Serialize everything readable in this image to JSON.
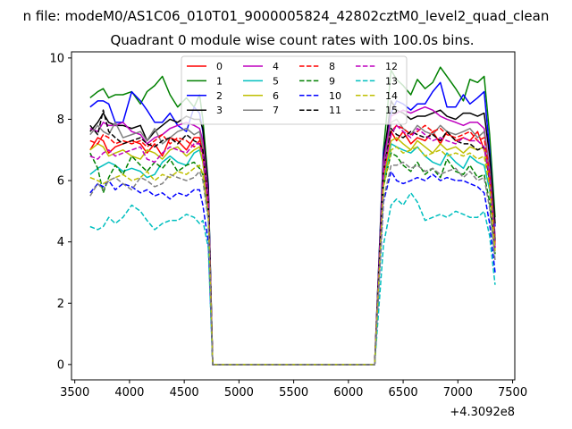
{
  "chart_data": {
    "type": "line",
    "supertitle": "n file: modeM0/AS1C06_010T01_9000005824_42802cztM0_level2_quad_clean",
    "title": "Quadrant 0 module wise count rates with 100.0s bins.",
    "xlabel": "",
    "ylabel": "",
    "x_offset_label": "+4.3092e8",
    "xlim": [
      3470,
      7520
    ],
    "ylim": [
      -0.5,
      10.2
    ],
    "x_ticks": [
      3500,
      4000,
      4500,
      5000,
      5500,
      6000,
      6500,
      7000,
      7500
    ],
    "x_tick_labels": [
      "3500",
      "4000",
      "4500",
      "5000",
      "5500",
      "6000",
      "6500",
      "7000",
      "7500"
    ],
    "y_ticks": [
      0,
      2,
      4,
      6,
      8,
      10
    ],
    "y_tick_labels": [
      "0",
      "2",
      "4",
      "6",
      "8",
      "10"
    ],
    "grid": false,
    "legend_placement": "upper-center",
    "legend_columns": 4,
    "x": [
      3640,
      3710,
      3760,
      3810,
      3870,
      3940,
      4020,
      4100,
      4160,
      4230,
      4300,
      4370,
      4440,
      4520,
      4590,
      4640,
      4670,
      4720,
      4760,
      4840,
      6240,
      6320,
      6390,
      6440,
      6500,
      6570,
      6630,
      6700,
      6770,
      6840,
      6900,
      6980,
      7050,
      7110,
      7180,
      7240,
      7290,
      7340
    ],
    "series": [
      {
        "name": "0",
        "color": "#ff0000",
        "dash": "solid",
        "values": [
          7.0,
          7.4,
          7.3,
          6.9,
          7.1,
          7.2,
          7.3,
          7.2,
          6.9,
          7.2,
          6.8,
          7.4,
          7.3,
          7.0,
          7.4,
          7.4,
          6.9,
          5.2,
          0.0,
          0.0,
          0.0,
          6.5,
          7.6,
          7.3,
          7.6,
          7.2,
          7.4,
          7.3,
          7.6,
          7.2,
          7.6,
          7.3,
          7.4,
          7.3,
          7.6,
          7.0,
          6.5,
          3.8
        ]
      },
      {
        "name": "1",
        "color": "#008000",
        "dash": "solid",
        "values": [
          8.7,
          8.9,
          9.0,
          8.7,
          8.8,
          8.8,
          8.9,
          8.5,
          8.9,
          9.1,
          9.4,
          8.8,
          8.4,
          8.7,
          8.4,
          8.8,
          8.0,
          5.9,
          0.0,
          0.0,
          0.0,
          7.0,
          9.6,
          9.3,
          9.1,
          8.8,
          9.3,
          9.0,
          9.2,
          9.7,
          9.4,
          9.0,
          8.6,
          9.3,
          9.2,
          9.4,
          7.5,
          4.8
        ]
      },
      {
        "name": "2",
        "color": "#0000ff",
        "dash": "solid",
        "values": [
          8.4,
          8.6,
          8.6,
          8.5,
          7.9,
          7.9,
          8.9,
          8.6,
          8.3,
          7.9,
          7.9,
          8.2,
          7.8,
          7.6,
          8.4,
          8.2,
          7.6,
          5.8,
          0.0,
          0.0,
          0.0,
          6.9,
          8.2,
          8.6,
          8.5,
          8.3,
          8.5,
          8.5,
          8.9,
          9.2,
          8.4,
          8.4,
          8.8,
          8.5,
          8.7,
          8.9,
          7.0,
          4.5
        ]
      },
      {
        "name": "3",
        "color": "#000000",
        "dash": "solid",
        "values": [
          7.6,
          7.9,
          8.2,
          7.9,
          7.8,
          7.8,
          7.7,
          7.8,
          7.3,
          7.6,
          7.8,
          8.0,
          7.9,
          8.1,
          8.0,
          8.0,
          7.7,
          5.7,
          0.0,
          0.0,
          0.0,
          6.7,
          8.6,
          8.3,
          8.2,
          8.0,
          8.1,
          8.1,
          8.2,
          8.3,
          8.1,
          8.0,
          8.2,
          8.2,
          8.1,
          8.2,
          6.8,
          4.6
        ]
      },
      {
        "name": "4",
        "color": "#bf00bf",
        "dash": "solid",
        "values": [
          7.7,
          7.6,
          7.9,
          7.8,
          7.8,
          7.9,
          7.6,
          7.5,
          7.2,
          7.4,
          7.5,
          7.7,
          7.8,
          7.9,
          7.8,
          7.7,
          7.3,
          5.5,
          0.0,
          0.0,
          0.0,
          6.6,
          8.1,
          8.2,
          8.3,
          8.2,
          8.3,
          8.4,
          8.3,
          8.1,
          8.0,
          7.9,
          7.8,
          7.9,
          7.9,
          7.7,
          6.4,
          4.2
        ]
      },
      {
        "name": "5",
        "color": "#00bfbf",
        "dash": "solid",
        "values": [
          6.2,
          6.4,
          6.5,
          6.6,
          6.5,
          6.3,
          6.4,
          6.3,
          6.1,
          6.2,
          6.6,
          6.8,
          6.6,
          6.5,
          6.9,
          7.0,
          6.6,
          5.0,
          0.0,
          0.0,
          0.0,
          5.9,
          7.2,
          7.1,
          7.0,
          6.9,
          7.1,
          6.8,
          6.6,
          6.5,
          6.9,
          6.6,
          6.4,
          6.8,
          6.6,
          6.5,
          5.7,
          3.9
        ]
      },
      {
        "name": "6",
        "color": "#bfbf00",
        "dash": "solid",
        "values": [
          7.0,
          7.2,
          7.1,
          6.8,
          6.9,
          7.0,
          6.8,
          6.7,
          7.0,
          6.9,
          6.7,
          7.0,
          7.1,
          6.8,
          7.0,
          7.1,
          6.6,
          5.1,
          0.0,
          0.0,
          0.0,
          6.1,
          7.3,
          7.4,
          7.2,
          7.0,
          7.3,
          7.1,
          6.9,
          7.2,
          7.0,
          7.1,
          6.9,
          7.1,
          7.0,
          7.1,
          6.0,
          4.0
        ]
      },
      {
        "name": "7",
        "color": "#808080",
        "dash": "solid",
        "values": [
          7.5,
          7.8,
          7.6,
          7.5,
          7.9,
          7.4,
          7.5,
          7.6,
          7.3,
          7.7,
          7.2,
          7.4,
          7.6,
          7.7,
          7.5,
          7.6,
          7.1,
          5.3,
          0.0,
          0.0,
          0.0,
          6.4,
          7.9,
          8.0,
          7.7,
          7.5,
          7.8,
          7.6,
          7.5,
          7.8,
          7.6,
          7.5,
          7.6,
          7.7,
          7.4,
          7.6,
          6.3,
          4.1
        ]
      },
      {
        "name": "8",
        "color": "#ff0000",
        "dash": "dashed",
        "values": [
          7.3,
          7.2,
          7.5,
          7.4,
          7.2,
          7.3,
          7.2,
          7.3,
          7.1,
          7.3,
          7.5,
          7.2,
          7.4,
          7.3,
          7.1,
          7.3,
          6.9,
          5.2,
          0.0,
          0.0,
          0.0,
          6.2,
          7.6,
          7.8,
          7.7,
          7.5,
          7.6,
          7.8,
          7.6,
          7.7,
          7.5,
          7.4,
          7.5,
          7.6,
          7.3,
          7.4,
          6.2,
          3.9
        ]
      },
      {
        "name": "9",
        "color": "#008000",
        "dash": "dashed",
        "values": [
          6.9,
          6.4,
          5.6,
          6.1,
          6.5,
          6.2,
          6.8,
          6.5,
          6.3,
          6.6,
          6.4,
          6.7,
          6.3,
          6.5,
          6.6,
          6.4,
          6.2,
          4.8,
          0.0,
          0.0,
          0.0,
          5.8,
          6.9,
          6.8,
          6.5,
          6.3,
          6.6,
          6.2,
          6.4,
          6.1,
          6.7,
          6.3,
          6.2,
          6.5,
          6.1,
          6.2,
          5.3,
          3.6
        ]
      },
      {
        "name": "10",
        "color": "#0000ff",
        "dash": "dashed",
        "values": [
          5.6,
          5.9,
          5.8,
          6.0,
          5.7,
          5.9,
          5.8,
          5.6,
          5.7,
          5.5,
          5.6,
          5.4,
          5.6,
          5.5,
          5.7,
          5.7,
          5.2,
          4.0,
          0.0,
          0.0,
          0.0,
          5.3,
          6.3,
          6.0,
          5.9,
          6.0,
          6.1,
          6.0,
          6.2,
          6.0,
          6.1,
          6.0,
          6.0,
          5.9,
          5.8,
          5.6,
          4.6,
          3.0
        ]
      },
      {
        "name": "11",
        "color": "#000000",
        "dash": "dashed",
        "values": [
          7.8,
          7.5,
          8.3,
          7.6,
          7.4,
          7.2,
          7.3,
          7.4,
          7.2,
          7.1,
          7.3,
          7.4,
          7.2,
          7.5,
          7.3,
          7.2,
          7.0,
          5.3,
          0.0,
          0.0,
          0.0,
          6.3,
          7.7,
          7.5,
          7.4,
          7.6,
          7.5,
          7.4,
          7.5,
          7.3,
          7.6,
          7.3,
          7.2,
          7.2,
          7.0,
          7.1,
          6.0,
          4.0
        ]
      },
      {
        "name": "12",
        "color": "#bf00bf",
        "dash": "dashed",
        "values": [
          6.8,
          6.7,
          6.9,
          7.0,
          6.8,
          6.9,
          7.0,
          7.1,
          6.7,
          6.6,
          6.9,
          7.1,
          7.0,
          6.9,
          7.2,
          7.2,
          6.8,
          5.2,
          0.0,
          0.0,
          0.0,
          6.3,
          7.5,
          7.8,
          7.6,
          7.4,
          7.7,
          7.5,
          7.3,
          7.4,
          7.3,
          7.2,
          7.4,
          7.3,
          7.3,
          7.1,
          6.1,
          3.8
        ]
      },
      {
        "name": "13",
        "color": "#00bfbf",
        "dash": "dashed",
        "values": [
          4.5,
          4.4,
          4.5,
          4.8,
          4.6,
          4.8,
          5.2,
          5.0,
          4.7,
          4.4,
          4.6,
          4.7,
          4.7,
          4.9,
          4.8,
          4.6,
          4.7,
          3.8,
          0.0,
          0.0,
          0.0,
          3.9,
          5.2,
          5.4,
          5.2,
          5.6,
          5.3,
          4.7,
          4.8,
          4.9,
          4.8,
          5.0,
          4.9,
          4.8,
          4.8,
          5.0,
          4.2,
          2.6
        ]
      },
      {
        "name": "14",
        "color": "#bfbf00",
        "dash": "dashed",
        "values": [
          6.1,
          6.0,
          5.9,
          6.0,
          6.1,
          6.2,
          6.0,
          6.1,
          6.3,
          6.0,
          6.2,
          6.1,
          6.3,
          6.2,
          6.4,
          6.5,
          6.2,
          4.9,
          0.0,
          0.0,
          0.0,
          5.8,
          7.0,
          7.1,
          6.9,
          7.0,
          7.1,
          6.8,
          6.9,
          7.0,
          6.8,
          6.9,
          6.8,
          6.9,
          6.7,
          6.8,
          5.8,
          3.7
        ]
      },
      {
        "name": "15",
        "color": "#808080",
        "dash": "dashed",
        "values": [
          5.5,
          5.9,
          5.7,
          6.0,
          6.1,
          5.9,
          5.7,
          6.1,
          6.0,
          5.8,
          5.9,
          6.2,
          6.1,
          6.0,
          6.1,
          6.3,
          6.0,
          4.7,
          0.0,
          0.0,
          0.0,
          5.4,
          6.5,
          6.5,
          6.6,
          6.4,
          6.5,
          6.3,
          6.4,
          6.2,
          6.3,
          6.4,
          6.1,
          6.3,
          6.0,
          6.1,
          5.1,
          3.4
        ]
      }
    ]
  }
}
